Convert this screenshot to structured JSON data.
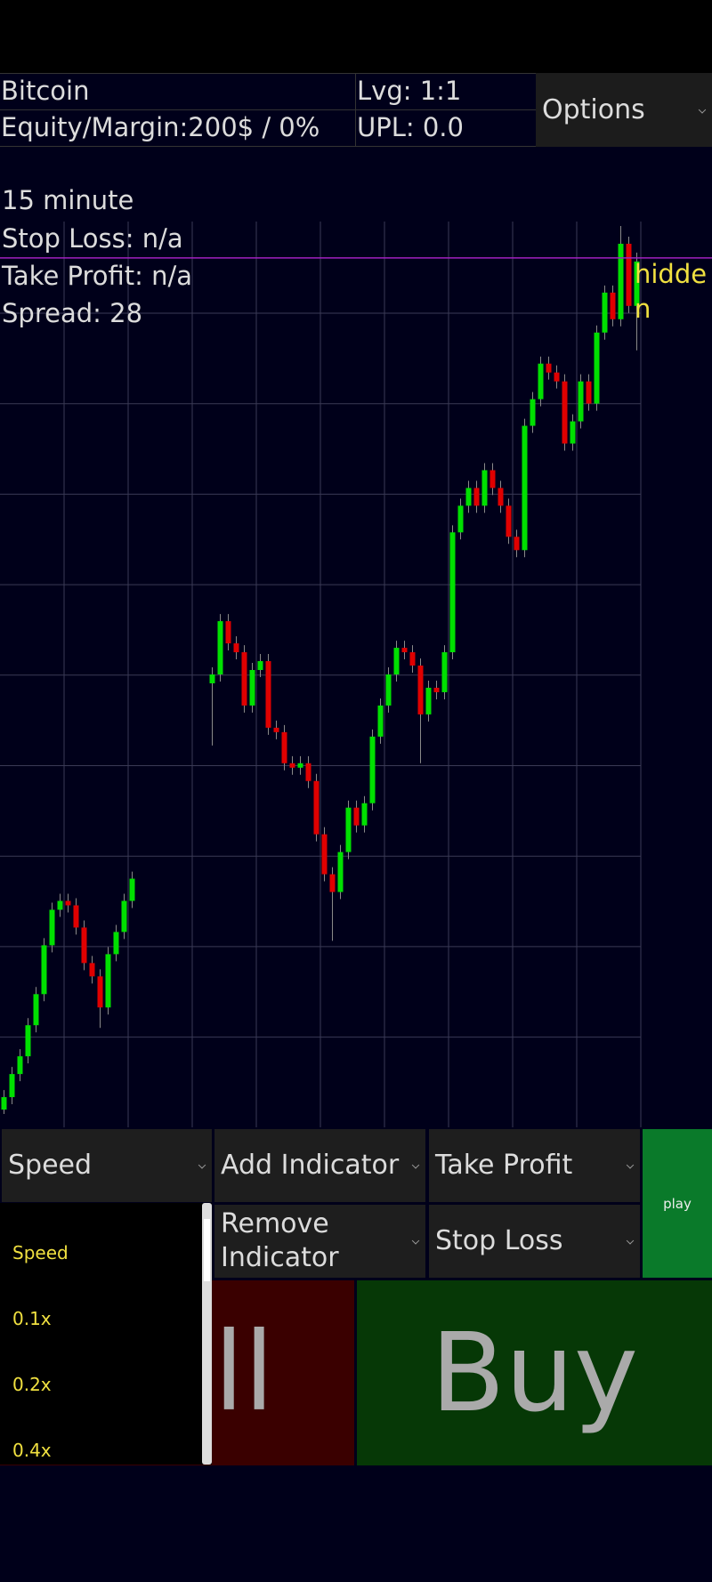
{
  "status": {
    "title": "Bitcoin",
    "equity": "Equity/Margin:200$ / 0%",
    "leverage": "Lvg: 1:1",
    "upl": "UPL: 0.0",
    "options": "Options"
  },
  "info": {
    "timeframe": "15 minute",
    "stop_loss": "Stop Loss: n/a",
    "take_profit": "Take Profit: n/a",
    "spread": "Spread: 28"
  },
  "chart_data": {
    "type": "candlestick",
    "ylim": [
      -20,
      1000
    ],
    "grid": true,
    "up_color": "#00e000",
    "down_color": "#e00000",
    "level_line": {
      "value": 959,
      "color": "#a020c0"
    },
    "annotation": [
      "hidde",
      "n"
    ],
    "annotation_color": "#f0e040",
    "open": [
      0,
      14,
      40,
      60,
      95,
      130,
      185,
      225,
      235,
      230,
      205,
      165,
      150,
      115,
      175,
      200,
      235,
      null,
      null,
      null,
      null,
      null,
      null,
      null,
      null,
      null,
      480,
      490,
      550,
      525,
      515,
      455,
      495,
      505,
      430,
      425,
      390,
      385,
      390,
      370,
      310,
      265,
      245,
      290,
      340,
      320,
      345,
      420,
      455,
      490,
      520,
      515,
      500,
      445,
      475,
      470,
      515,
      650,
      680,
      700,
      680,
      720,
      700,
      680,
      645,
      630,
      770,
      800,
      840,
      830,
      820,
      750,
      775,
      820,
      795,
      875,
      920,
      890,
      975,
      905
    ],
    "high": [
      22,
      48,
      68,
      103,
      138,
      193,
      233,
      243,
      243,
      238,
      213,
      173,
      158,
      183,
      208,
      243,
      268,
      null,
      null,
      null,
      null,
      null,
      null,
      null,
      null,
      null,
      498,
      558,
      558,
      533,
      523,
      503,
      513,
      513,
      438,
      433,
      398,
      398,
      398,
      378,
      318,
      273,
      298,
      348,
      348,
      353,
      428,
      463,
      498,
      528,
      528,
      523,
      508,
      483,
      483,
      523,
      658,
      688,
      708,
      708,
      728,
      728,
      708,
      688,
      653,
      778,
      808,
      848,
      848,
      838,
      828,
      783,
      828,
      828,
      883,
      928,
      928,
      995,
      983,
      965
    ],
    "low": [
      -5,
      6,
      32,
      52,
      87,
      122,
      177,
      217,
      222,
      197,
      157,
      142,
      92,
      107,
      167,
      192,
      227,
      null,
      null,
      null,
      null,
      null,
      null,
      null,
      null,
      null,
      410,
      482,
      517,
      507,
      447,
      447,
      487,
      422,
      417,
      382,
      377,
      377,
      362,
      302,
      257,
      190,
      237,
      282,
      312,
      312,
      337,
      412,
      447,
      482,
      507,
      492,
      390,
      437,
      462,
      462,
      507,
      642,
      672,
      672,
      672,
      692,
      672,
      637,
      622,
      622,
      762,
      792,
      822,
      812,
      742,
      742,
      767,
      787,
      787,
      867,
      882,
      882,
      897,
      855
    ],
    "close": [
      14,
      40,
      60,
      95,
      130,
      185,
      225,
      235,
      230,
      205,
      165,
      150,
      115,
      175,
      200,
      235,
      260,
      null,
      null,
      null,
      null,
      null,
      null,
      null,
      null,
      null,
      490,
      550,
      525,
      515,
      455,
      495,
      505,
      430,
      425,
      390,
      385,
      390,
      370,
      310,
      265,
      245,
      290,
      340,
      320,
      345,
      420,
      455,
      490,
      520,
      515,
      500,
      445,
      475,
      470,
      515,
      650,
      680,
      700,
      680,
      720,
      700,
      680,
      645,
      630,
      770,
      800,
      840,
      830,
      820,
      750,
      775,
      820,
      795,
      875,
      920,
      890,
      975,
      905,
      955
    ]
  },
  "controls": {
    "speed": "Speed",
    "add_indicator": "Add Indicator",
    "take_profit": "Take Profit",
    "play": "play",
    "remove_indicator": "Remove Indicator",
    "stop_loss": "Stop Loss"
  },
  "speed_menu": [
    "Speed",
    "0.1x",
    "0.2x",
    "0.4x"
  ],
  "trade": {
    "sell": "Sell",
    "buy": "Buy"
  }
}
